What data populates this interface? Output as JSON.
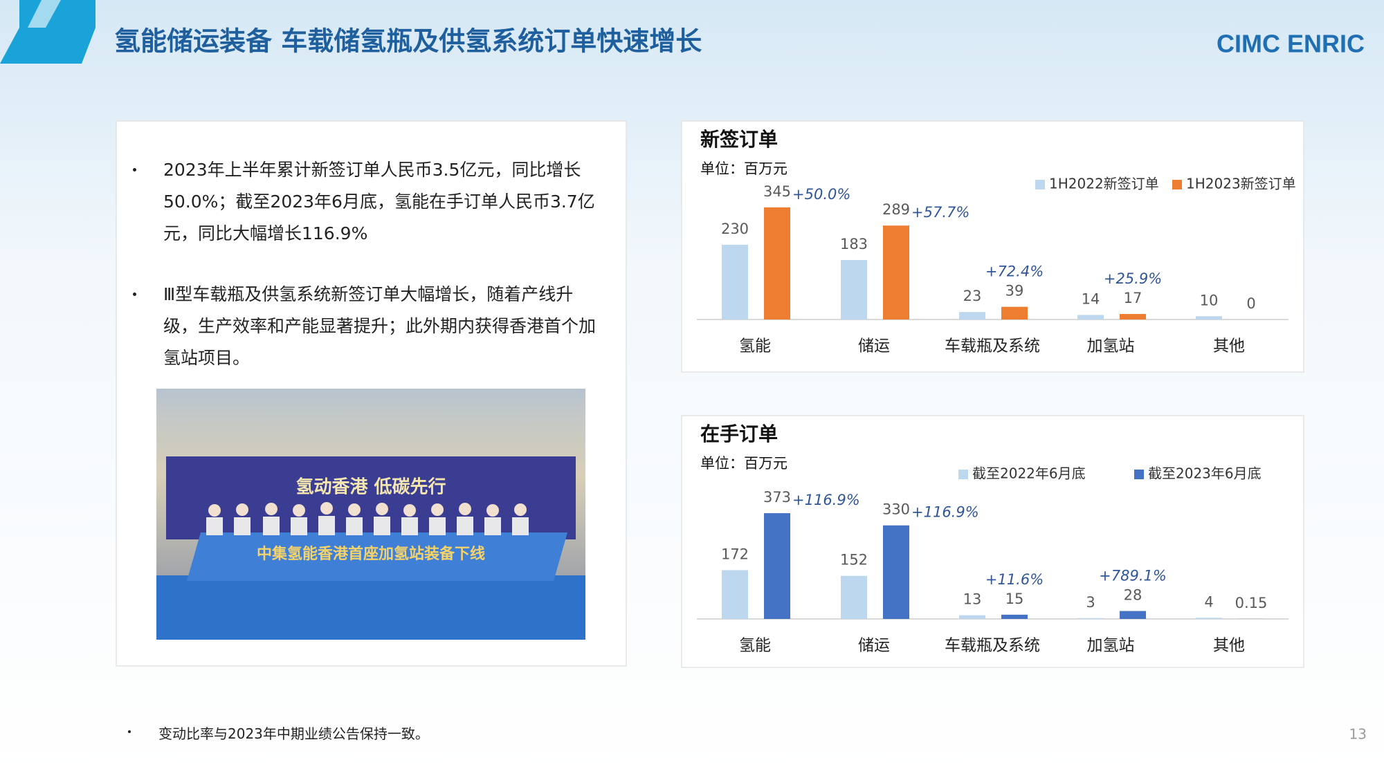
{
  "header": {
    "title": "氢能储运装备 车载储氢瓶及供氢系统订单快速增长",
    "logo": "CIMC ENRIC"
  },
  "bullets": [
    "2023年上半年累计新签订单人民币3.5亿元，同比增长50.0%；截至2023年6月底，氢能在手订单人民币3.7亿元，同比大幅增长116.9%",
    "Ⅲ型车载瓶及供氢系统新签订单大幅增长，随着产线升级，生产效率和产能显著提升；此外期内获得香港首个加氢站项目。"
  ],
  "photo": {
    "banner_top": "氢动香港  低碳先行",
    "banner_bottom": "中集氢能香港首座加氢站装备下线"
  },
  "footnote": "变动比率与2023年中期业绩公告保持一致。",
  "page_number": "13",
  "chart_data": [
    {
      "type": "bar",
      "title": "新签订单",
      "unit": "单位：百万元",
      "categories": [
        "氢能",
        "储运",
        "车载瓶及系统",
        "加氢站",
        "其他"
      ],
      "series": [
        {
          "name": "1H2022新签订单",
          "color": "#bdd7ee",
          "values": [
            230,
            183,
            23,
            14,
            10
          ]
        },
        {
          "name": "1H2023新签订单",
          "color": "#ed7d31",
          "values": [
            345,
            289,
            39,
            17,
            0
          ]
        }
      ],
      "changes": [
        "+50.0%",
        "+57.7%",
        "+72.4%",
        "+25.9%",
        null
      ]
    },
    {
      "type": "bar",
      "title": "在手订单",
      "unit": "单位：百万元",
      "categories": [
        "氢能",
        "储运",
        "车载瓶及系统",
        "加氢站",
        "其他"
      ],
      "series": [
        {
          "name": "截至2022年6月底",
          "color": "#bdd7ee",
          "values": [
            172,
            152,
            13,
            3,
            4
          ]
        },
        {
          "name": "截至2023年6月底",
          "color": "#4472c4",
          "values": [
            373,
            330,
            15,
            28,
            0.15
          ]
        }
      ],
      "changes": [
        "+116.9%",
        "+116.9%",
        "+11.6%",
        "+789.1%",
        null
      ]
    }
  ]
}
